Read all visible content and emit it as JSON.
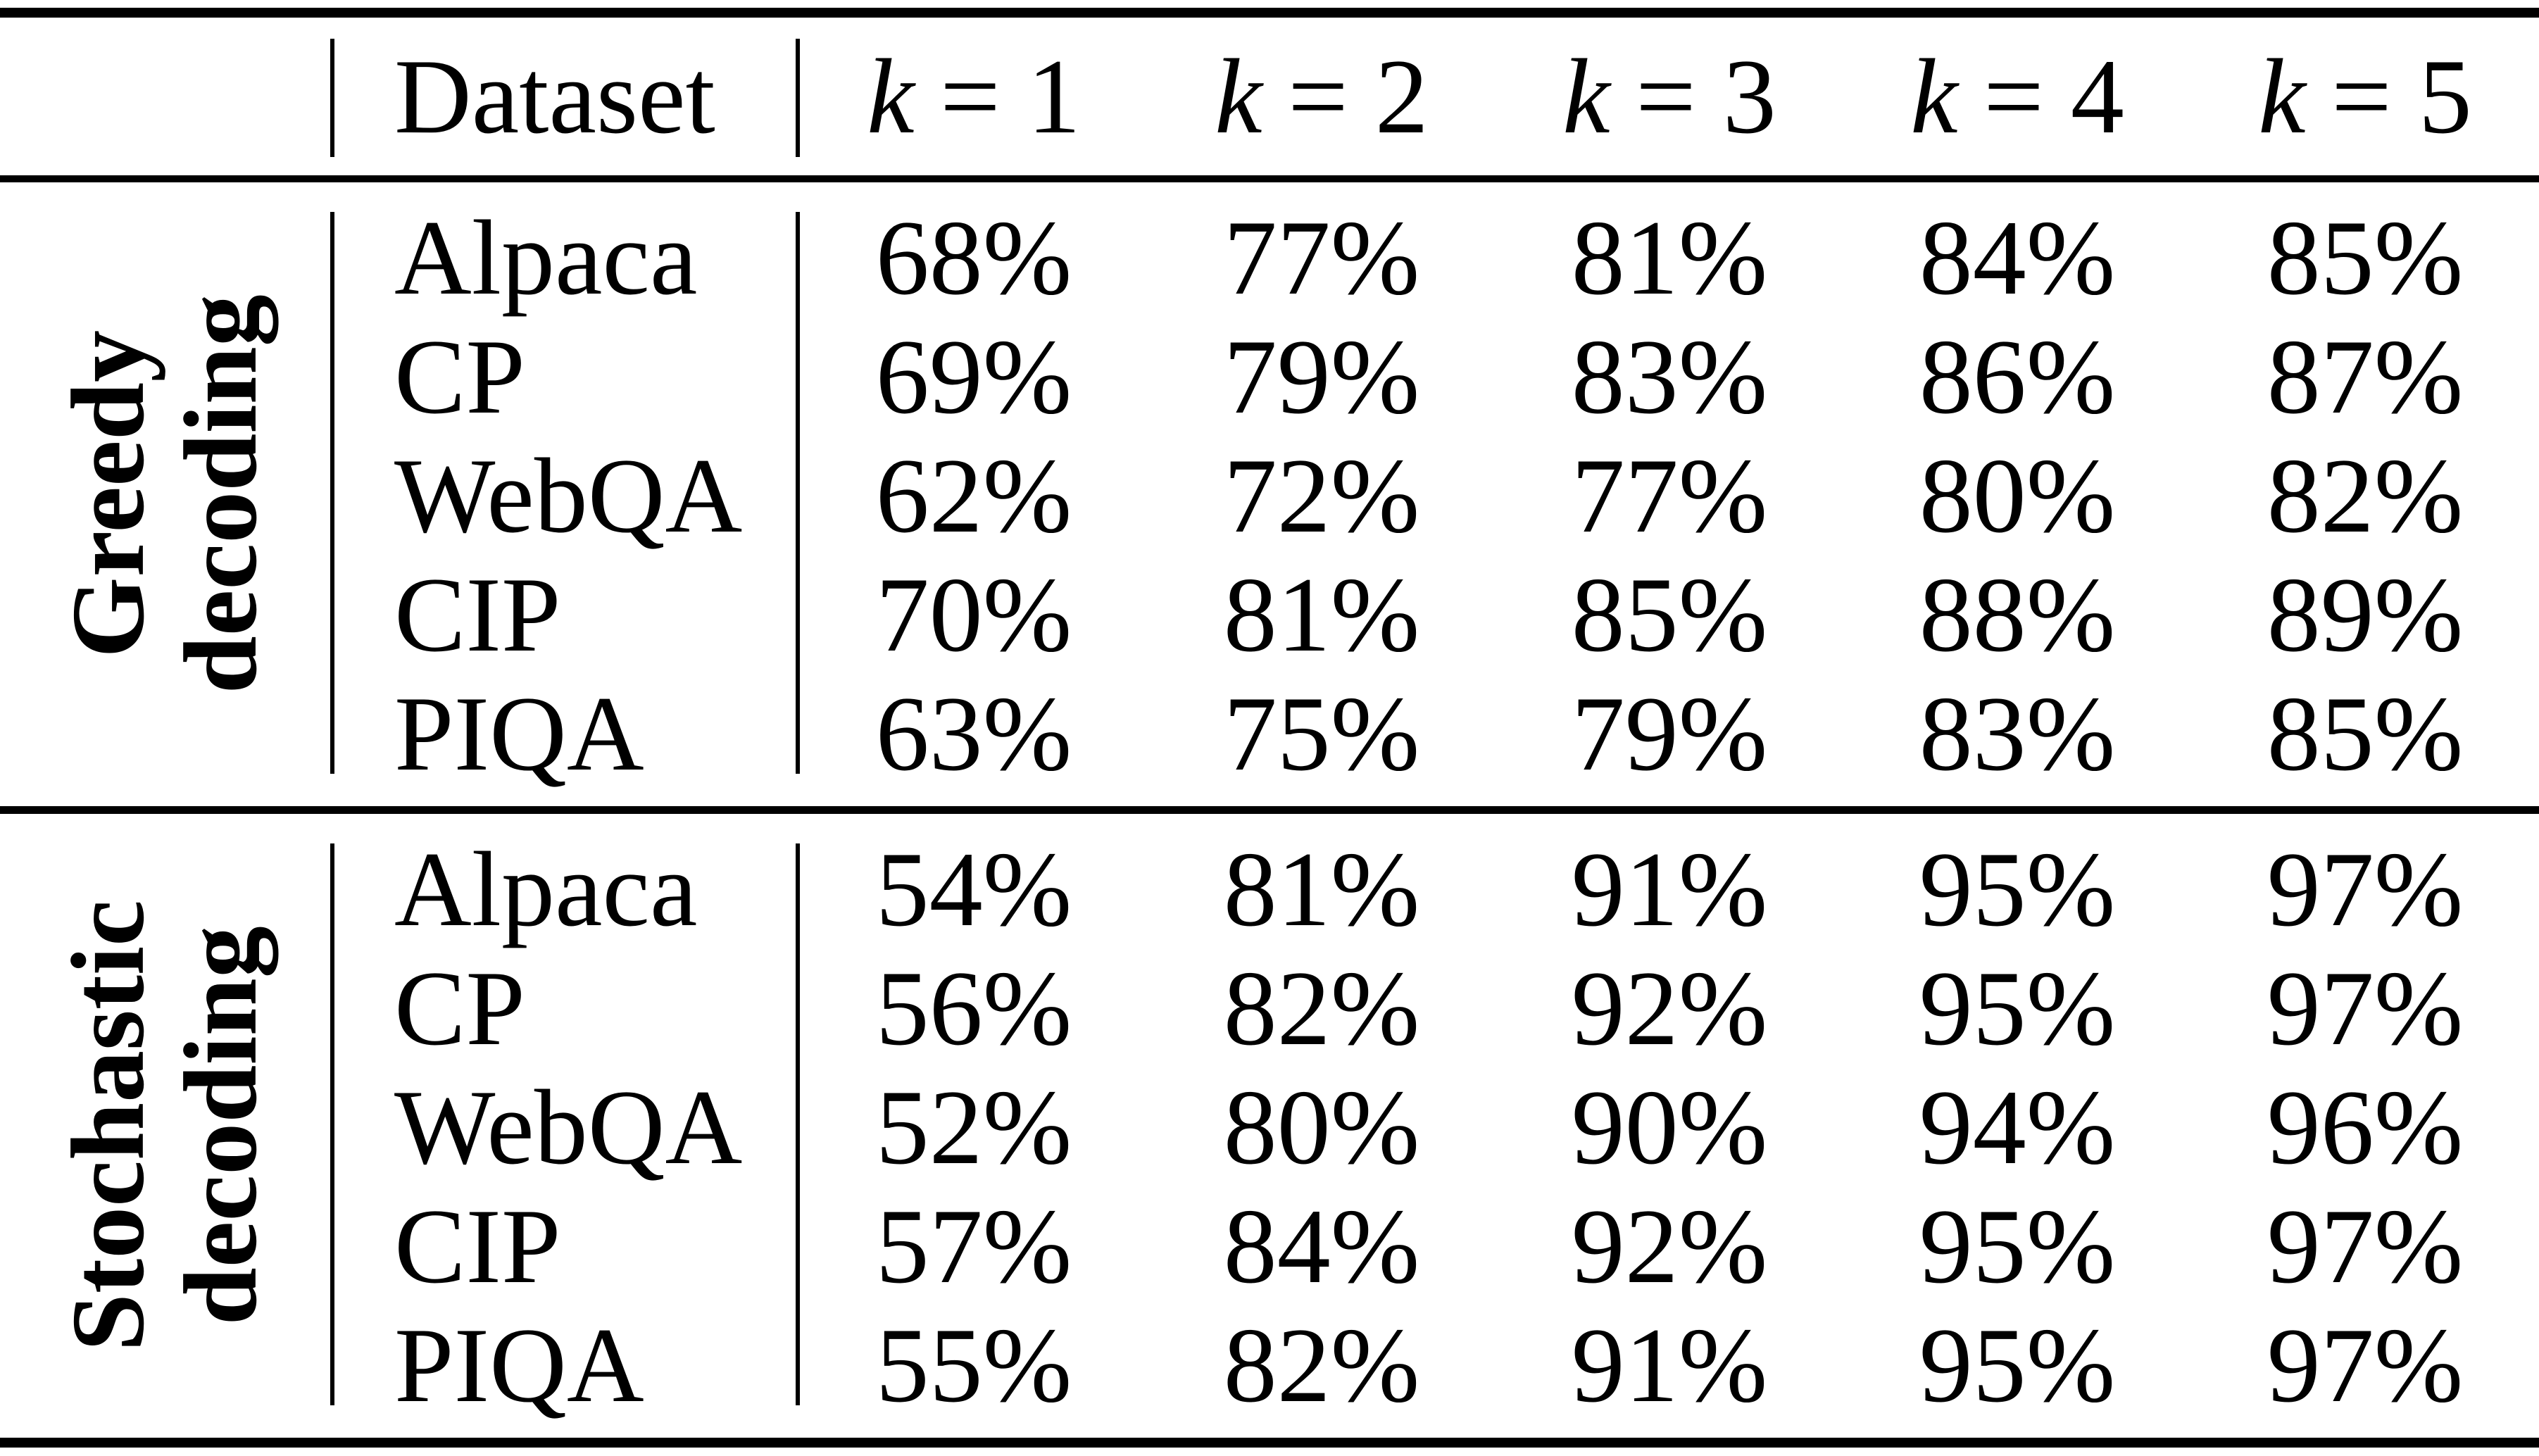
{
  "page": {
    "background": "#ffffff",
    "text_color": "#000000"
  },
  "header": {
    "dataset_label": "Dataset",
    "k_cols": [
      {
        "var": "k",
        "rest": "= 1"
      },
      {
        "var": "k",
        "rest": "= 2"
      },
      {
        "var": "k",
        "rest": "= 3"
      },
      {
        "var": "k",
        "rest": "= 4"
      },
      {
        "var": "k",
        "rest": "= 5"
      }
    ]
  },
  "sections": [
    {
      "label_line1": "Greedy",
      "label_line2": "decoding",
      "rows": [
        {
          "dataset": "Alpaca",
          "values": [
            "68%",
            "77%",
            "81%",
            "84%",
            "85%"
          ]
        },
        {
          "dataset": "CP",
          "values": [
            "69%",
            "79%",
            "83%",
            "86%",
            "87%"
          ]
        },
        {
          "dataset": "WebQA",
          "values": [
            "62%",
            "72%",
            "77%",
            "80%",
            "82%"
          ]
        },
        {
          "dataset": "CIP",
          "values": [
            "70%",
            "81%",
            "85%",
            "88%",
            "89%"
          ]
        },
        {
          "dataset": "PIQA",
          "values": [
            "63%",
            "75%",
            "79%",
            "83%",
            "85%"
          ]
        }
      ]
    },
    {
      "label_line1": "Stochastic",
      "label_line2": "decoding",
      "rows": [
        {
          "dataset": "Alpaca",
          "values": [
            "54%",
            "81%",
            "91%",
            "95%",
            "97%"
          ]
        },
        {
          "dataset": "CP",
          "values": [
            "56%",
            "82%",
            "92%",
            "95%",
            "97%"
          ]
        },
        {
          "dataset": "WebQA",
          "values": [
            "52%",
            "80%",
            "90%",
            "94%",
            "96%"
          ]
        },
        {
          "dataset": "CIP",
          "values": [
            "57%",
            "84%",
            "92%",
            "95%",
            "97%"
          ]
        },
        {
          "dataset": "PIQA",
          "values": [
            "55%",
            "82%",
            "91%",
            "95%",
            "97%"
          ]
        }
      ]
    }
  ],
  "chart_data": {
    "type": "table",
    "columns": [
      "Dataset",
      "k = 1",
      "k = 2",
      "k = 3",
      "k = 4",
      "k = 5"
    ],
    "row_groups": [
      {
        "group": "Greedy decoding",
        "rows": [
          [
            "Alpaca",
            "68%",
            "77%",
            "81%",
            "84%",
            "85%"
          ],
          [
            "CP",
            "69%",
            "79%",
            "83%",
            "86%",
            "87%"
          ],
          [
            "WebQA",
            "62%",
            "72%",
            "77%",
            "80%",
            "82%"
          ],
          [
            "CIP",
            "70%",
            "81%",
            "85%",
            "88%",
            "89%"
          ],
          [
            "PIQA",
            "63%",
            "75%",
            "79%",
            "83%",
            "85%"
          ]
        ]
      },
      {
        "group": "Stochastic decoding",
        "rows": [
          [
            "Alpaca",
            "54%",
            "81%",
            "91%",
            "95%",
            "97%"
          ],
          [
            "CP",
            "56%",
            "82%",
            "92%",
            "95%",
            "97%"
          ],
          [
            "WebQA",
            "52%",
            "80%",
            "90%",
            "94%",
            "96%"
          ],
          [
            "CIP",
            "57%",
            "84%",
            "92%",
            "95%",
            "97%"
          ],
          [
            "PIQA",
            "55%",
            "82%",
            "91%",
            "95%",
            "97%"
          ]
        ]
      }
    ]
  }
}
